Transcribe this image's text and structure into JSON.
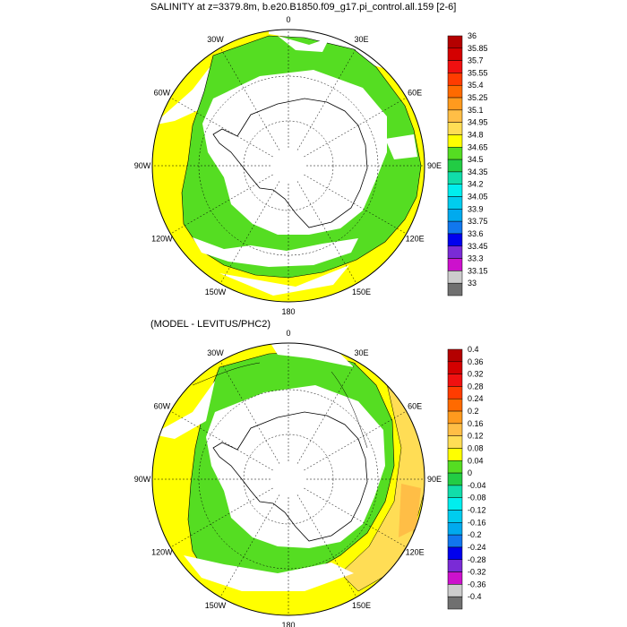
{
  "panels": [
    {
      "title": "SALINITY at z=3379.8m, b.e20.B1850.f09_g17.pi_control.all.159 [2-6]",
      "colorbar": {
        "labels": [
          "36",
          "35.85",
          "35.7",
          "35.55",
          "35.4",
          "35.25",
          "35.1",
          "34.95",
          "34.8",
          "34.65",
          "34.5",
          "34.35",
          "34.2",
          "34.05",
          "33.9",
          "33.75",
          "33.6",
          "33.45",
          "33.3",
          "33.15",
          "33"
        ],
        "colors": [
          "#b40000",
          "#d40000",
          "#f01010",
          "#ff3c00",
          "#ff6a00",
          "#ff9a1e",
          "#ffbe46",
          "#ffdd55",
          "#ffff00",
          "#55dd22",
          "#22cc44",
          "#11ddaa",
          "#00eeee",
          "#00ccee",
          "#00aaee",
          "#1177ee",
          "#0000ee",
          "#7a2bd6",
          "#cc11cc",
          "#cccccc",
          "#707070"
        ]
      }
    },
    {
      "title": "(MODEL - LEVITUS/PHC2)",
      "colorbar": {
        "labels": [
          "0.4",
          "0.36",
          "0.32",
          "0.28",
          "0.24",
          "0.2",
          "0.16",
          "0.12",
          "0.08",
          "0.04",
          "0",
          "-0.04",
          "-0.08",
          "-0.12",
          "-0.16",
          "-0.2",
          "-0.24",
          "-0.28",
          "-0.32",
          "-0.36",
          "-0.4"
        ],
        "colors": [
          "#b40000",
          "#d40000",
          "#f01010",
          "#ff3c00",
          "#ff6a00",
          "#ff9a1e",
          "#ffbe46",
          "#ffdd55",
          "#ffff00",
          "#55dd22",
          "#22cc44",
          "#11ddaa",
          "#00eeee",
          "#00ccee",
          "#00aaee",
          "#1177ee",
          "#0000ee",
          "#7a2bd6",
          "#cc11cc",
          "#cccccc",
          "#707070"
        ]
      }
    }
  ],
  "lon_labels": [
    "0",
    "30E",
    "60E",
    "90E",
    "120E",
    "150E",
    "180",
    "150W",
    "120W",
    "90W",
    "60W",
    "30W"
  ],
  "colors": {
    "yellow": "#ffff00",
    "green": "#55dd22",
    "light_orange": "#ffdd55",
    "orange": "#ffbe46",
    "white": "#ffffff",
    "coast": "#000000"
  }
}
